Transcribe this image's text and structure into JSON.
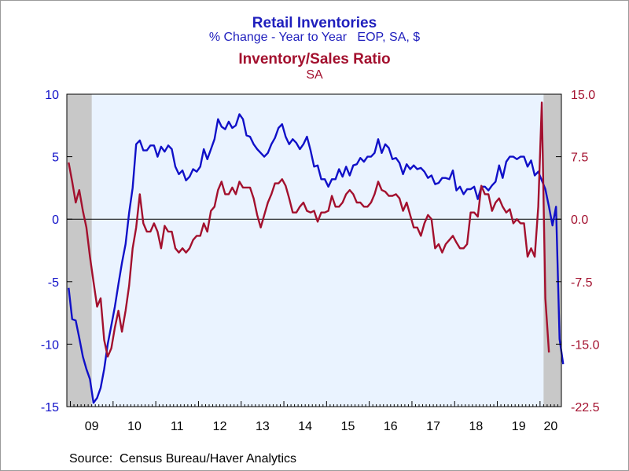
{
  "header": {
    "title1": "Retail Inventories",
    "subtitle1": "% Change - Year to Year   EOP, SA, $",
    "title2": "Inventory/Sales Ratio",
    "subtitle2": "SA"
  },
  "footer": {
    "source": "Source:  Census Bureau/Haver Analytics"
  },
  "colors": {
    "series1": "#1010c8",
    "series2": "#a3102e",
    "plot_bg": "#eaf3ff",
    "recession": "#c8c8c8",
    "left_axis": "#1010c8",
    "right_axis": "#a3102e"
  },
  "chart_data": {
    "type": "line",
    "x_labels": [
      "09",
      "10",
      "11",
      "12",
      "13",
      "14",
      "15",
      "16",
      "17",
      "18",
      "19",
      "20"
    ],
    "x_range": [
      "2008-12",
      "2020-06"
    ],
    "left_axis": {
      "ylim": [
        -15,
        10
      ],
      "ticks": [
        "10",
        "5",
        "0",
        "-5",
        "-10",
        "-15"
      ]
    },
    "right_axis": {
      "ylim": [
        -22.5,
        15
      ],
      "ticks": [
        "15.0",
        "7.5",
        "0.0",
        "-7.5",
        "-15.0",
        "-22.5"
      ]
    },
    "zero_line": true,
    "recession_shading": [
      [
        "2008-12",
        "2009-06"
      ],
      [
        "2020-02",
        "2020-06"
      ]
    ],
    "series": [
      {
        "axis": "left",
        "points": [
          [
            "2008-12",
            -5.5
          ],
          [
            "2009-01",
            -8.0
          ],
          [
            "2009-02",
            -8.1
          ],
          [
            "2009-03",
            -9.5
          ],
          [
            "2009-04",
            -11.0
          ],
          [
            "2009-05",
            -12.0
          ],
          [
            "2009-06",
            -12.8
          ],
          [
            "2009-07",
            -14.7
          ],
          [
            "2009-08",
            -14.3
          ],
          [
            "2009-09",
            -13.5
          ],
          [
            "2009-10",
            -12.0
          ],
          [
            "2009-11",
            -10.0
          ],
          [
            "2009-12",
            -8.5
          ],
          [
            "2010-01",
            -7.0
          ],
          [
            "2010-02",
            -5.2
          ],
          [
            "2010-03",
            -3.5
          ],
          [
            "2010-04",
            -2.0
          ],
          [
            "2010-05",
            0.5
          ],
          [
            "2010-06",
            2.5
          ],
          [
            "2010-07",
            6.0
          ],
          [
            "2010-08",
            6.3
          ],
          [
            "2010-09",
            5.5
          ],
          [
            "2010-10",
            5.5
          ],
          [
            "2010-11",
            5.9
          ],
          [
            "2010-12",
            5.9
          ],
          [
            "2011-01",
            5.0
          ],
          [
            "2011-02",
            5.8
          ],
          [
            "2011-03",
            5.4
          ],
          [
            "2011-04",
            5.9
          ],
          [
            "2011-05",
            5.6
          ],
          [
            "2011-06",
            4.2
          ],
          [
            "2011-07",
            3.6
          ],
          [
            "2011-08",
            3.9
          ],
          [
            "2011-09",
            3.1
          ],
          [
            "2011-10",
            3.4
          ],
          [
            "2011-11",
            4.0
          ],
          [
            "2011-12",
            3.8
          ],
          [
            "2012-01",
            4.2
          ],
          [
            "2012-02",
            5.6
          ],
          [
            "2012-03",
            4.8
          ],
          [
            "2012-04",
            5.6
          ],
          [
            "2012-05",
            6.4
          ],
          [
            "2012-06",
            8.0
          ],
          [
            "2012-07",
            7.4
          ],
          [
            "2012-08",
            7.2
          ],
          [
            "2012-09",
            7.8
          ],
          [
            "2012-10",
            7.3
          ],
          [
            "2012-11",
            7.5
          ],
          [
            "2012-12",
            8.4
          ],
          [
            "2013-01",
            8.0
          ],
          [
            "2013-02",
            6.7
          ],
          [
            "2013-03",
            6.6
          ],
          [
            "2013-04",
            6.0
          ],
          [
            "2013-05",
            5.6
          ],
          [
            "2013-06",
            5.3
          ],
          [
            "2013-07",
            5.0
          ],
          [
            "2013-08",
            5.3
          ],
          [
            "2013-09",
            6.0
          ],
          [
            "2013-10",
            6.5
          ],
          [
            "2013-11",
            7.3
          ],
          [
            "2013-12",
            7.6
          ],
          [
            "2014-01",
            6.6
          ],
          [
            "2014-02",
            6.0
          ],
          [
            "2014-03",
            6.4
          ],
          [
            "2014-04",
            6.1
          ],
          [
            "2014-05",
            5.6
          ],
          [
            "2014-06",
            6.0
          ],
          [
            "2014-07",
            6.6
          ],
          [
            "2014-08",
            5.5
          ],
          [
            "2014-09",
            4.2
          ],
          [
            "2014-10",
            4.3
          ],
          [
            "2014-11",
            3.2
          ],
          [
            "2014-12",
            3.2
          ],
          [
            "2015-01",
            2.6
          ],
          [
            "2015-02",
            3.2
          ],
          [
            "2015-03",
            3.2
          ],
          [
            "2015-04",
            4.0
          ],
          [
            "2015-05",
            3.4
          ],
          [
            "2015-06",
            4.2
          ],
          [
            "2015-07",
            3.5
          ],
          [
            "2015-08",
            4.3
          ],
          [
            "2015-09",
            4.4
          ],
          [
            "2015-10",
            4.9
          ],
          [
            "2015-11",
            4.6
          ],
          [
            "2015-12",
            5.0
          ],
          [
            "2016-01",
            5.0
          ],
          [
            "2016-02",
            5.3
          ],
          [
            "2016-03",
            6.4
          ],
          [
            "2016-04",
            5.3
          ],
          [
            "2016-05",
            6.0
          ],
          [
            "2016-06",
            5.7
          ],
          [
            "2016-07",
            4.8
          ],
          [
            "2016-08",
            4.9
          ],
          [
            "2016-09",
            4.5
          ],
          [
            "2016-10",
            3.6
          ],
          [
            "2016-11",
            4.4
          ],
          [
            "2016-12",
            4.0
          ],
          [
            "2017-01",
            4.3
          ],
          [
            "2017-02",
            4.0
          ],
          [
            "2017-03",
            4.1
          ],
          [
            "2017-04",
            3.8
          ],
          [
            "2017-05",
            3.3
          ],
          [
            "2017-06",
            3.5
          ],
          [
            "2017-07",
            2.8
          ],
          [
            "2017-08",
            2.9
          ],
          [
            "2017-09",
            3.3
          ],
          [
            "2017-10",
            3.3
          ],
          [
            "2017-11",
            3.2
          ],
          [
            "2017-12",
            3.9
          ],
          [
            "2018-01",
            2.3
          ],
          [
            "2018-02",
            2.6
          ],
          [
            "2018-03",
            2.0
          ],
          [
            "2018-04",
            2.4
          ],
          [
            "2018-05",
            2.4
          ],
          [
            "2018-06",
            2.6
          ],
          [
            "2018-07",
            1.6
          ],
          [
            "2018-08",
            2.6
          ],
          [
            "2018-09",
            2.6
          ],
          [
            "2018-10",
            2.3
          ],
          [
            "2018-11",
            2.7
          ],
          [
            "2018-12",
            3.0
          ],
          [
            "2019-01",
            4.3
          ],
          [
            "2019-02",
            3.3
          ],
          [
            "2019-03",
            4.6
          ],
          [
            "2019-04",
            5.0
          ],
          [
            "2019-05",
            5.0
          ],
          [
            "2019-06",
            4.8
          ],
          [
            "2019-07",
            5.0
          ],
          [
            "2019-08",
            5.0
          ],
          [
            "2019-09",
            4.2
          ],
          [
            "2019-10",
            4.7
          ],
          [
            "2019-11",
            3.5
          ],
          [
            "2019-12",
            3.8
          ],
          [
            "2020-01",
            3.1
          ],
          [
            "2020-02",
            2.4
          ],
          [
            "2020-03",
            1.0
          ],
          [
            "2020-04",
            -0.5
          ],
          [
            "2020-05",
            1.0
          ],
          [
            "2020-06",
            -9.6
          ],
          [
            "2020-07",
            -11.6
          ]
        ]
      },
      {
        "axis": "right",
        "points": [
          [
            "2008-12",
            6.8
          ],
          [
            "2009-01",
            4.5
          ],
          [
            "2009-02",
            2.0
          ],
          [
            "2009-03",
            3.5
          ],
          [
            "2009-04",
            1.0
          ],
          [
            "2009-05",
            -1.0
          ],
          [
            "2009-06",
            -4.5
          ],
          [
            "2009-07",
            -7.5
          ],
          [
            "2009-08",
            -10.5
          ],
          [
            "2009-09",
            -9.5
          ],
          [
            "2009-10",
            -14.5
          ],
          [
            "2009-11",
            -16.5
          ],
          [
            "2009-12",
            -15.5
          ],
          [
            "2010-01",
            -13.0
          ],
          [
            "2010-02",
            -11.0
          ],
          [
            "2010-03",
            -13.5
          ],
          [
            "2010-04",
            -11.0
          ],
          [
            "2010-05",
            -8.0
          ],
          [
            "2010-06",
            -3.5
          ],
          [
            "2010-07",
            -1.0
          ],
          [
            "2010-08",
            3.0
          ],
          [
            "2010-09",
            -0.5
          ],
          [
            "2010-10",
            -1.5
          ],
          [
            "2010-11",
            -1.5
          ],
          [
            "2010-12",
            -0.5
          ],
          [
            "2011-01",
            -1.5
          ],
          [
            "2011-02",
            -3.5
          ],
          [
            "2011-03",
            -0.8
          ],
          [
            "2011-04",
            -1.5
          ],
          [
            "2011-05",
            -1.5
          ],
          [
            "2011-06",
            -3.5
          ],
          [
            "2011-07",
            -4.0
          ],
          [
            "2011-08",
            -3.5
          ],
          [
            "2011-09",
            -4.0
          ],
          [
            "2011-10",
            -3.5
          ],
          [
            "2011-11",
            -2.5
          ],
          [
            "2011-12",
            -2.0
          ],
          [
            "2012-01",
            -2.0
          ],
          [
            "2012-02",
            -0.5
          ],
          [
            "2012-03",
            -1.5
          ],
          [
            "2012-04",
            1.0
          ],
          [
            "2012-05",
            1.5
          ],
          [
            "2012-06",
            3.5
          ],
          [
            "2012-07",
            4.5
          ],
          [
            "2012-08",
            3.0
          ],
          [
            "2012-09",
            3.0
          ],
          [
            "2012-10",
            3.8
          ],
          [
            "2012-11",
            3.0
          ],
          [
            "2012-12",
            4.5
          ],
          [
            "2013-01",
            3.8
          ],
          [
            "2013-02",
            3.8
          ],
          [
            "2013-03",
            3.8
          ],
          [
            "2013-04",
            2.5
          ],
          [
            "2013-05",
            0.5
          ],
          [
            "2013-06",
            -1.0
          ],
          [
            "2013-07",
            0.5
          ],
          [
            "2013-08",
            2.0
          ],
          [
            "2013-09",
            3.0
          ],
          [
            "2013-10",
            4.3
          ],
          [
            "2013-11",
            4.3
          ],
          [
            "2013-12",
            4.8
          ],
          [
            "2014-01",
            4.0
          ],
          [
            "2014-02",
            2.5
          ],
          [
            "2014-03",
            0.8
          ],
          [
            "2014-04",
            0.8
          ],
          [
            "2014-05",
            1.5
          ],
          [
            "2014-06",
            2.0
          ],
          [
            "2014-07",
            1.0
          ],
          [
            "2014-08",
            0.8
          ],
          [
            "2014-09",
            1.0
          ],
          [
            "2014-10",
            -0.3
          ],
          [
            "2014-11",
            0.8
          ],
          [
            "2014-12",
            0.8
          ],
          [
            "2015-01",
            1.0
          ],
          [
            "2015-02",
            2.8
          ],
          [
            "2015-03",
            1.5
          ],
          [
            "2015-04",
            1.5
          ],
          [
            "2015-05",
            2.0
          ],
          [
            "2015-06",
            3.0
          ],
          [
            "2015-07",
            3.5
          ],
          [
            "2015-08",
            3.0
          ],
          [
            "2015-09",
            2.0
          ],
          [
            "2015-10",
            2.0
          ],
          [
            "2015-11",
            1.5
          ],
          [
            "2015-12",
            1.5
          ],
          [
            "2016-01",
            2.0
          ],
          [
            "2016-02",
            3.0
          ],
          [
            "2016-03",
            4.5
          ],
          [
            "2016-04",
            3.5
          ],
          [
            "2016-05",
            3.3
          ],
          [
            "2016-06",
            2.8
          ],
          [
            "2016-07",
            2.8
          ],
          [
            "2016-08",
            3.0
          ],
          [
            "2016-09",
            2.5
          ],
          [
            "2016-10",
            1.0
          ],
          [
            "2016-11",
            2.0
          ],
          [
            "2016-12",
            0.5
          ],
          [
            "2017-01",
            -1.0
          ],
          [
            "2017-02",
            -1.0
          ],
          [
            "2017-03",
            -2.0
          ],
          [
            "2017-04",
            -0.5
          ],
          [
            "2017-05",
            0.5
          ],
          [
            "2017-06",
            0.0
          ],
          [
            "2017-07",
            -3.5
          ],
          [
            "2017-08",
            -3.0
          ],
          [
            "2017-09",
            -4.0
          ],
          [
            "2017-10",
            -3.0
          ],
          [
            "2017-11",
            -2.5
          ],
          [
            "2017-12",
            -2.0
          ],
          [
            "2018-01",
            -2.8
          ],
          [
            "2018-02",
            -3.5
          ],
          [
            "2018-03",
            -3.5
          ],
          [
            "2018-04",
            -3.0
          ],
          [
            "2018-05",
            0.8
          ],
          [
            "2018-06",
            0.8
          ],
          [
            "2018-07",
            0.3
          ],
          [
            "2018-08",
            4.0
          ],
          [
            "2018-09",
            3.0
          ],
          [
            "2018-10",
            3.0
          ],
          [
            "2018-11",
            1.0
          ],
          [
            "2018-12",
            2.0
          ],
          [
            "2019-01",
            2.5
          ],
          [
            "2019-02",
            1.5
          ],
          [
            "2019-03",
            0.8
          ],
          [
            "2019-04",
            1.2
          ],
          [
            "2019-05",
            -0.5
          ],
          [
            "2019-06",
            0.0
          ],
          [
            "2019-07",
            -0.5
          ],
          [
            "2019-08",
            -0.5
          ],
          [
            "2019-09",
            -4.5
          ],
          [
            "2019-10",
            -3.5
          ],
          [
            "2019-11",
            -4.5
          ],
          [
            "2019-12",
            1.5
          ],
          [
            "2020-01",
            14.0
          ],
          [
            "2020-02",
            -9.5
          ],
          [
            "2020-03",
            -16.0
          ]
        ]
      }
    ]
  }
}
